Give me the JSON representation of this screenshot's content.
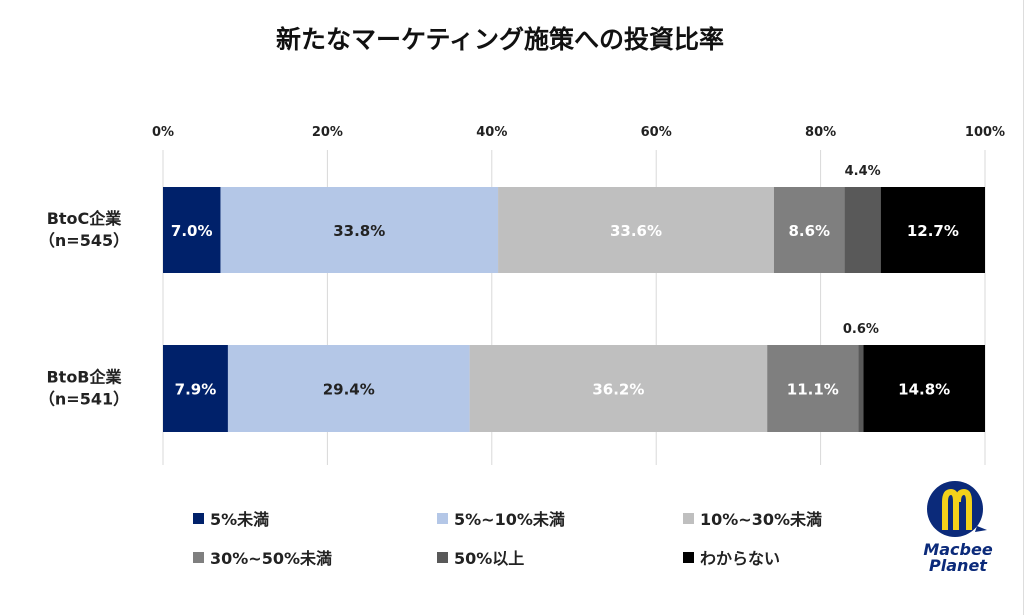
{
  "chart_data": {
    "type": "bar",
    "orientation": "horizontal-stacked-100",
    "title": "新たなマーケティング施策への投資比率",
    "categories": [
      "BtoC企業\n（n=545）",
      "BtoB企業\n（n=541）"
    ],
    "category_lines": [
      [
        "BtoC企業",
        "（n=545）"
      ],
      [
        "BtoB企業",
        "（n=541）"
      ]
    ],
    "xlim": [
      0,
      100
    ],
    "xticks": [
      "0%",
      "20%",
      "40%",
      "60%",
      "80%",
      "100%"
    ],
    "grid": true,
    "legend_position": "bottom",
    "series": [
      {
        "name": "5%未満",
        "values": [
          7.0,
          7.9
        ],
        "labels": [
          "7.0%",
          "7.9%"
        ],
        "color": "#00216a",
        "label_color": "#ffffff"
      },
      {
        "name": "5%~10%未満",
        "values": [
          33.8,
          29.4
        ],
        "labels": [
          "33.8%",
          "29.4%"
        ],
        "color": "#b4c7e7",
        "label_color": "#222222"
      },
      {
        "name": "10%~30%未満",
        "values": [
          33.6,
          36.2
        ],
        "labels": [
          "33.6%",
          "36.2%"
        ],
        "color": "#bfbfbf",
        "label_color": "#ffffff"
      },
      {
        "name": "30%~50%未満",
        "values": [
          8.6,
          11.1
        ],
        "labels": [
          "8.6%",
          "11.1%"
        ],
        "color": "#7f7f7f",
        "label_color": "#ffffff"
      },
      {
        "name": "50%以上",
        "values": [
          4.4,
          0.6
        ],
        "labels": [
          "4.4%",
          "0.6%"
        ],
        "color": "#595959",
        "label_color": "#222222",
        "label_outside": true
      },
      {
        "name": "わからない",
        "values": [
          12.7,
          14.8
        ],
        "labels": [
          "12.7%",
          "14.8%"
        ],
        "color": "#000000",
        "label_color": "#ffffff"
      }
    ]
  },
  "logo": {
    "text": "Macbee Planet",
    "line1": "Macbee",
    "line2": "Planet"
  }
}
